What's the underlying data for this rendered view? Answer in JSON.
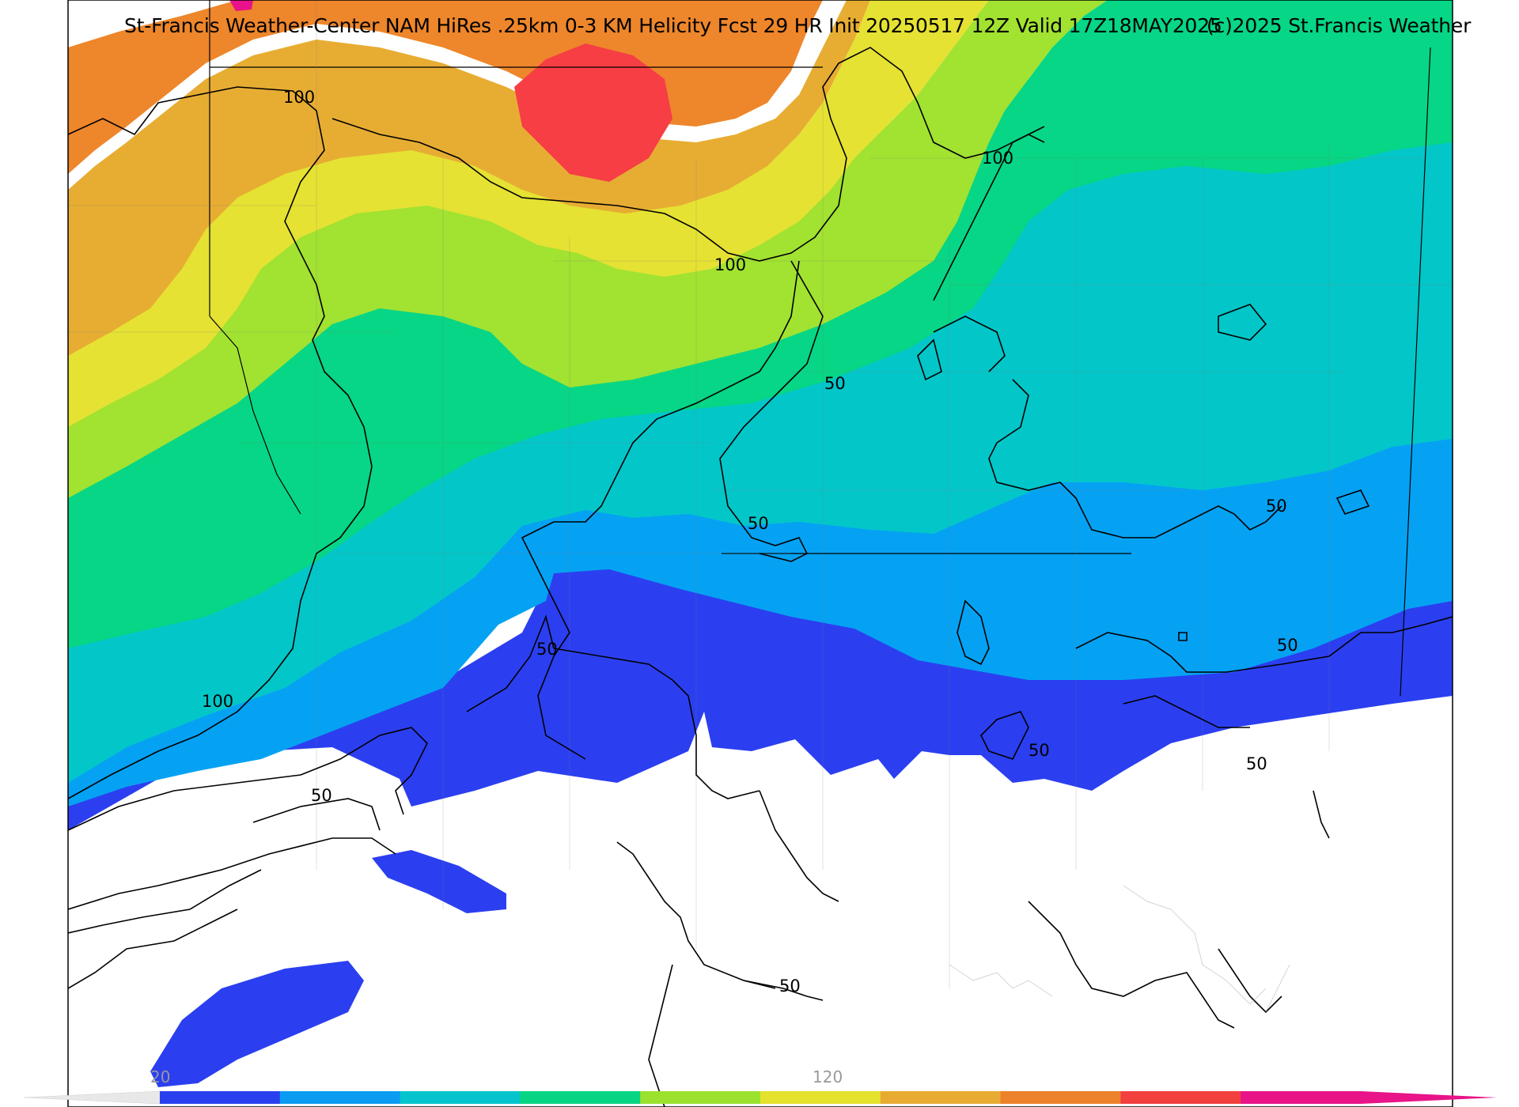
{
  "title": "St-Francis Weather-Center NAM HiRes .25km 0-3 KM Helicity Fcst 29 HR Init 20250517 12Z  Valid 17Z18MAY2025",
  "copyright": "(c)2025 St.Francis Weather",
  "contour_labels": {
    "c1": "100",
    "c2": "100",
    "c3": "100",
    "c4": "50",
    "c5": "50",
    "c6": "50",
    "c7": "50",
    "c8": "100",
    "c9": "50",
    "c10": "50",
    "c11": "50",
    "c12": "50",
    "c13": "50"
  },
  "colorbar": {
    "tick_min": "20",
    "tick_mid": "120",
    "colors": [
      "#2a40ee",
      "#0b9cf2",
      "#05c4cc",
      "#08d584",
      "#9be22e",
      "#e4e22c",
      "#e8ab32",
      "#ec822a",
      "#f2403f",
      "#e81488"
    ]
  },
  "fill_colors": {
    "white": "#ffffff",
    "blue": "#2b3ff0",
    "lightblue": "#05a2f3",
    "cyan": "#03c6c9",
    "green": "#06d685",
    "lime": "#a2e231",
    "yellow": "#e5e233",
    "gold": "#e7ad33",
    "orange": "#ee862b",
    "red": "#f63e44",
    "magenta": "#e8138a"
  }
}
